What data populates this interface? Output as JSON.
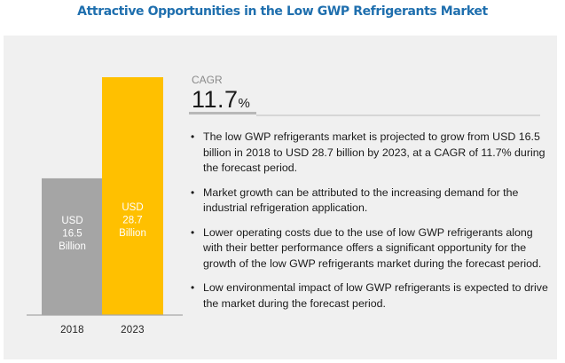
{
  "title": "Attractive Opportunities in the Low GWP Refrigerants Market",
  "cagr": {
    "label": "CAGR",
    "value": "11.7",
    "unit": "%"
  },
  "bullets": [
    "The low GWP refrigerants market is projected to grow from USD 16.5 billion in 2018 to USD 28.7 billion by 2023, at a CAGR of 11.7% during the forecast period.",
    "Market growth can be attributed to the increasing demand for the industrial refrigeration application.",
    "Lower operating costs due to the use of low GWP refrigerants along with their better performance offers a significant opportunity for the growth of the low GWP refrigerants market during the forecast period.",
    "Low environmental impact of low GWP refrigerants is expected to drive the market during the forecast period."
  ],
  "bullet_glyph": "•",
  "colors": {
    "title": "#1f6fae",
    "bar_2018": "#a5a5a5",
    "bar_2023": "#ffc000",
    "panel": "#f0f0f0"
  },
  "chart_data": {
    "type": "bar",
    "title": "Attractive Opportunities in the Low GWP Refrigerants Market",
    "xlabel": "",
    "ylabel": "",
    "unit": "USD Billion",
    "categories": [
      "2018",
      "2023"
    ],
    "values": [
      16.5,
      28.7
    ],
    "data_labels": [
      [
        "USD",
        "16.5",
        "Billion"
      ],
      [
        "USD",
        "28.7",
        "Billion"
      ]
    ],
    "ylim": [
      0,
      28.7
    ],
    "grid": false,
    "legend": "none"
  }
}
